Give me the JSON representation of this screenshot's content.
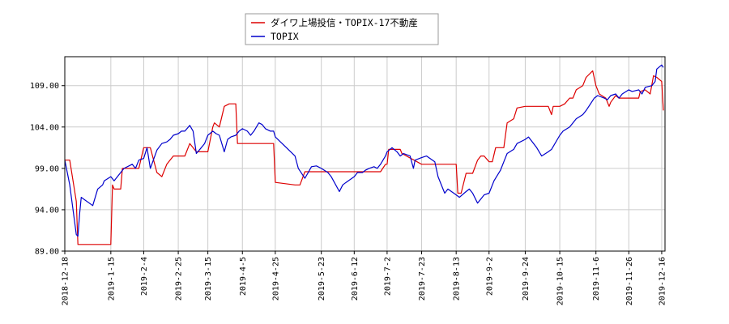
{
  "chart_data": {
    "type": "line",
    "title": "",
    "xlabel": "",
    "ylabel": "",
    "ylim": [
      89.0,
      112.5
    ],
    "y_ticks": [
      89.0,
      94.0,
      99.0,
      104.0,
      109.0
    ],
    "y_tick_labels": [
      "89.00",
      "94.00",
      "99.00",
      "104.00",
      "109.00"
    ],
    "x_range": [
      "2018-12-18",
      "2019-12-18"
    ],
    "x_ticks": [
      "2018-12-18",
      "2019-1-15",
      "2019-2-4",
      "2019-2-25",
      "2019-3-15",
      "2019-4-5",
      "2019-4-25",
      "2019-5-23",
      "2019-6-12",
      "2019-7-2",
      "2019-7-23",
      "2019-8-13",
      "2019-9-2",
      "2019-9-24",
      "2019-10-15",
      "2019-11-6",
      "2019-11-26",
      "2019-12-16"
    ],
    "grid": true,
    "legend_position": "top-center",
    "series": [
      {
        "name": "ダイワ上場投信・TOPIX-17不動産",
        "color": "#dd0000",
        "points": [
          [
            "2018-12-18",
            100.0
          ],
          [
            "2018-12-21",
            100.0
          ],
          [
            "2018-12-25",
            95.0
          ],
          [
            "2018-12-26",
            89.8
          ],
          [
            "2018-12-28",
            89.8
          ],
          [
            "2019-1-15",
            89.8
          ],
          [
            "2019-1-16",
            97.0
          ],
          [
            "2019-1-17",
            96.5
          ],
          [
            "2019-1-21",
            96.5
          ],
          [
            "2019-1-22",
            99.0
          ],
          [
            "2019-2-1",
            99.0
          ],
          [
            "2019-2-4",
            101.5
          ],
          [
            "2019-2-8",
            101.5
          ],
          [
            "2019-2-12",
            98.5
          ],
          [
            "2019-2-15",
            98.0
          ],
          [
            "2019-2-18",
            99.5
          ],
          [
            "2019-2-22",
            100.5
          ],
          [
            "2019-2-25",
            100.5
          ],
          [
            "2019-3-1",
            100.5
          ],
          [
            "2019-3-4",
            102.0
          ],
          [
            "2019-3-8",
            101.0
          ],
          [
            "2019-3-15",
            101.0
          ],
          [
            "2019-3-18",
            104.0
          ],
          [
            "2019-3-19",
            104.5
          ],
          [
            "2019-3-22",
            104.0
          ],
          [
            "2019-3-25",
            106.5
          ],
          [
            "2019-3-28",
            106.8
          ],
          [
            "2019-4-1",
            106.8
          ],
          [
            "2019-4-2",
            102.0
          ],
          [
            "2019-4-5",
            102.0
          ],
          [
            "2019-4-24",
            102.0
          ],
          [
            "2019-4-25",
            97.3
          ],
          [
            "2019-5-7",
            97.0
          ],
          [
            "2019-5-10",
            97.0
          ],
          [
            "2019-5-13",
            98.6
          ],
          [
            "2019-5-20",
            98.6
          ],
          [
            "2019-5-23",
            98.6
          ],
          [
            "2019-6-12",
            98.6
          ],
          [
            "2019-6-17",
            98.6
          ],
          [
            "2019-6-28",
            98.6
          ],
          [
            "2019-7-1",
            99.5
          ],
          [
            "2019-7-2",
            99.5
          ],
          [
            "2019-7-3",
            101.3
          ],
          [
            "2019-7-10",
            101.3
          ],
          [
            "2019-7-11",
            100.8
          ],
          [
            "2019-7-23",
            99.5
          ],
          [
            "2019-8-9",
            99.5
          ],
          [
            "2019-8-13",
            99.5
          ],
          [
            "2019-8-14",
            96.0
          ],
          [
            "2019-8-16",
            96.0
          ],
          [
            "2019-8-19",
            98.4
          ],
          [
            "2019-8-23",
            98.4
          ],
          [
            "2019-8-26",
            100.0
          ],
          [
            "2019-8-28",
            100.5
          ],
          [
            "2019-8-30",
            100.5
          ],
          [
            "2019-9-2",
            99.8
          ],
          [
            "2019-9-4",
            99.8
          ],
          [
            "2019-9-6",
            101.5
          ],
          [
            "2019-9-11",
            101.5
          ],
          [
            "2019-9-13",
            104.5
          ],
          [
            "2019-9-17",
            105.0
          ],
          [
            "2019-9-19",
            106.3
          ],
          [
            "2019-9-24",
            106.5
          ],
          [
            "2019-10-8",
            106.5
          ],
          [
            "2019-10-10",
            105.5
          ],
          [
            "2019-10-11",
            106.5
          ],
          [
            "2019-10-15",
            106.5
          ],
          [
            "2019-10-18",
            106.8
          ],
          [
            "2019-10-21",
            107.5
          ],
          [
            "2019-10-23",
            107.5
          ],
          [
            "2019-10-25",
            108.5
          ],
          [
            "2019-10-29",
            109.0
          ],
          [
            "2019-10-31",
            110.0
          ],
          [
            "2019-11-4",
            110.8
          ],
          [
            "2019-11-6",
            109.0
          ],
          [
            "2019-11-8",
            108.0
          ],
          [
            "2019-11-12",
            107.5
          ],
          [
            "2019-11-14",
            106.5
          ],
          [
            "2019-11-15",
            107.0
          ],
          [
            "2019-11-18",
            107.8
          ],
          [
            "2019-11-20",
            107.5
          ],
          [
            "2019-11-26",
            107.5
          ],
          [
            "2019-12-2",
            107.5
          ],
          [
            "2019-12-3",
            108.3
          ],
          [
            "2019-12-6",
            108.5
          ],
          [
            "2019-12-9",
            108.0
          ],
          [
            "2019-12-11",
            110.2
          ],
          [
            "2019-12-13",
            110.0
          ],
          [
            "2019-12-16",
            109.5
          ],
          [
            "2019-12-17",
            106.0
          ]
        ]
      },
      {
        "name": "TOPIX",
        "color": "#0000cc",
        "points": [
          [
            "2018-12-18",
            100.0
          ],
          [
            "2018-12-20",
            98.0
          ],
          [
            "2018-12-21",
            97.0
          ],
          [
            "2018-12-25",
            91.0
          ],
          [
            "2018-12-26",
            90.8
          ],
          [
            "2018-12-27",
            93.5
          ],
          [
            "2018-12-28",
            95.5
          ],
          [
            "2019-1-4",
            94.5
          ],
          [
            "2019-1-7",
            96.5
          ],
          [
            "2019-1-10",
            97.0
          ],
          [
            "2019-1-11",
            97.5
          ],
          [
            "2019-1-15",
            98.0
          ],
          [
            "2019-1-17",
            97.5
          ],
          [
            "2019-1-21",
            98.5
          ],
          [
            "2019-1-23",
            99.0
          ],
          [
            "2019-1-28",
            99.5
          ],
          [
            "2019-1-30",
            99.0
          ],
          [
            "2019-2-1",
            100.0
          ],
          [
            "2019-2-4",
            100.2
          ],
          [
            "2019-2-6",
            101.5
          ],
          [
            "2019-2-8",
            99.0
          ],
          [
            "2019-2-12",
            101.2
          ],
          [
            "2019-2-15",
            102.0
          ],
          [
            "2019-2-18",
            102.2
          ],
          [
            "2019-2-20",
            102.5
          ],
          [
            "2019-2-22",
            103.0
          ],
          [
            "2019-2-25",
            103.2
          ],
          [
            "2019-2-27",
            103.5
          ],
          [
            "2019-3-1",
            103.5
          ],
          [
            "2019-3-4",
            104.2
          ],
          [
            "2019-3-6",
            103.5
          ],
          [
            "2019-3-8",
            100.8
          ],
          [
            "2019-3-11",
            101.5
          ],
          [
            "2019-3-13",
            102.0
          ],
          [
            "2019-3-15",
            103.0
          ],
          [
            "2019-3-18",
            103.5
          ],
          [
            "2019-3-20",
            103.2
          ],
          [
            "2019-3-22",
            103.0
          ],
          [
            "2019-3-25",
            101.0
          ],
          [
            "2019-3-27",
            102.5
          ],
          [
            "2019-3-29",
            102.8
          ],
          [
            "2019-4-1",
            103.0
          ],
          [
            "2019-4-3",
            103.5
          ],
          [
            "2019-4-5",
            103.8
          ],
          [
            "2019-4-8",
            103.5
          ],
          [
            "2019-4-10",
            103.0
          ],
          [
            "2019-4-12",
            103.5
          ],
          [
            "2019-4-15",
            104.5
          ],
          [
            "2019-4-17",
            104.3
          ],
          [
            "2019-4-19",
            103.8
          ],
          [
            "2019-4-22",
            103.5
          ],
          [
            "2019-4-24",
            103.5
          ],
          [
            "2019-4-25",
            102.8
          ],
          [
            "2019-5-7",
            100.5
          ],
          [
            "2019-5-9",
            99.0
          ],
          [
            "2019-5-13",
            97.8
          ],
          [
            "2019-5-15",
            98.5
          ],
          [
            "2019-5-17",
            99.2
          ],
          [
            "2019-5-20",
            99.3
          ],
          [
            "2019-5-23",
            99.0
          ],
          [
            "2019-5-27",
            98.5
          ],
          [
            "2019-5-29",
            98.0
          ],
          [
            "2019-6-3",
            96.2
          ],
          [
            "2019-6-5",
            97.0
          ],
          [
            "2019-6-7",
            97.3
          ],
          [
            "2019-6-12",
            98.0
          ],
          [
            "2019-6-14",
            98.5
          ],
          [
            "2019-6-17",
            98.5
          ],
          [
            "2019-6-19",
            98.8
          ],
          [
            "2019-6-21",
            99.0
          ],
          [
            "2019-6-24",
            99.2
          ],
          [
            "2019-6-26",
            99.0
          ],
          [
            "2019-6-28",
            99.5
          ],
          [
            "2019-7-1",
            100.5
          ],
          [
            "2019-7-2",
            101.0
          ],
          [
            "2019-7-5",
            101.5
          ],
          [
            "2019-7-8",
            101.0
          ],
          [
            "2019-7-10",
            100.5
          ],
          [
            "2019-7-12",
            100.8
          ],
          [
            "2019-7-16",
            100.5
          ],
          [
            "2019-7-18",
            99.0
          ],
          [
            "2019-7-19",
            100.0
          ],
          [
            "2019-7-23",
            100.3
          ],
          [
            "2019-7-26",
            100.5
          ],
          [
            "2019-7-31",
            99.8
          ],
          [
            "2019-8-2",
            98.0
          ],
          [
            "2019-8-6",
            96.0
          ],
          [
            "2019-8-8",
            96.5
          ],
          [
            "2019-8-13",
            95.8
          ],
          [
            "2019-8-15",
            95.5
          ],
          [
            "2019-8-19",
            96.2
          ],
          [
            "2019-8-21",
            96.5
          ],
          [
            "2019-8-23",
            96.0
          ],
          [
            "2019-8-26",
            94.8
          ],
          [
            "2019-8-28",
            95.3
          ],
          [
            "2019-8-30",
            95.8
          ],
          [
            "2019-9-2",
            96.0
          ],
          [
            "2019-9-5",
            97.5
          ],
          [
            "2019-9-9",
            98.8
          ],
          [
            "2019-9-11",
            99.8
          ],
          [
            "2019-9-13",
            100.8
          ],
          [
            "2019-9-17",
            101.3
          ],
          [
            "2019-9-19",
            102.0
          ],
          [
            "2019-9-24",
            102.5
          ],
          [
            "2019-9-26",
            102.8
          ],
          [
            "2019-10-1",
            101.5
          ],
          [
            "2019-10-4",
            100.5
          ],
          [
            "2019-10-8",
            101.0
          ],
          [
            "2019-10-10",
            101.3
          ],
          [
            "2019-10-15",
            103.0
          ],
          [
            "2019-10-17",
            103.5
          ],
          [
            "2019-10-21",
            104.0
          ],
          [
            "2019-10-23",
            104.5
          ],
          [
            "2019-10-25",
            105.0
          ],
          [
            "2019-10-29",
            105.5
          ],
          [
            "2019-10-31",
            106.0
          ],
          [
            "2019-11-5",
            107.5
          ],
          [
            "2019-11-7",
            107.8
          ],
          [
            "2019-11-11",
            107.5
          ],
          [
            "2019-11-13",
            107.3
          ],
          [
            "2019-11-15",
            107.8
          ],
          [
            "2019-11-18",
            108.0
          ],
          [
            "2019-11-20",
            107.5
          ],
          [
            "2019-11-22",
            108.0
          ],
          [
            "2019-11-26",
            108.5
          ],
          [
            "2019-11-28",
            108.3
          ],
          [
            "2019-12-2",
            108.5
          ],
          [
            "2019-12-4",
            108.0
          ],
          [
            "2019-12-6",
            108.8
          ],
          [
            "2019-12-10",
            109.0
          ],
          [
            "2019-12-12",
            109.5
          ],
          [
            "2019-12-13",
            111.0
          ],
          [
            "2019-12-16",
            111.5
          ],
          [
            "2019-12-17",
            111.2
          ]
        ]
      }
    ]
  }
}
